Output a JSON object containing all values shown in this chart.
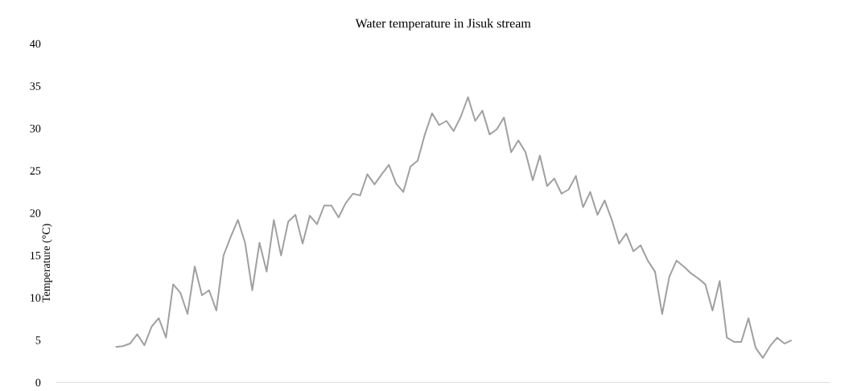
{
  "chart_data": {
    "type": "line",
    "title": "Water temperature in Jisuk stream",
    "ylabel": "Temperature (°C)",
    "categories": [
      null,
      null,
      null,
      null,
      null,
      null,
      null,
      null,
      null,
      null,
      null,
      null,
      null,
      null,
      null,
      null,
      null,
      null,
      null,
      null,
      null,
      null,
      null,
      null,
      null,
      null,
      null,
      null,
      null,
      null,
      null,
      null,
      null,
      null,
      null,
      null,
      null,
      null,
      null,
      null,
      null,
      null,
      null,
      null,
      null,
      null,
      null,
      null,
      null,
      null,
      null,
      null,
      null,
      null,
      null,
      null,
      null,
      null,
      null,
      null,
      null,
      null,
      null,
      null,
      null,
      null,
      null,
      null,
      null,
      null,
      null,
      null,
      null,
      null,
      null,
      null,
      null,
      null,
      null,
      null,
      null,
      null,
      null,
      null,
      null,
      null,
      null,
      null,
      null,
      null,
      null,
      null,
      null,
      null,
      null
    ],
    "values": [
      4.2,
      4.3,
      4.6,
      5.7,
      4.4,
      6.6,
      7.6,
      5.3,
      11.6,
      10.6,
      8.1,
      13.7,
      10.3,
      10.9,
      8.5,
      15,
      17.2,
      19.2,
      16.5,
      10.9,
      16.5,
      13.1,
      19.2,
      15,
      19,
      19.8,
      16.4,
      19.7,
      18.7,
      20.9,
      20.9,
      19.5,
      21.2,
      22.3,
      22.1,
      24.6,
      23.4,
      24.6,
      25.7,
      23.5,
      22.5,
      25.5,
      26.2,
      29.3,
      31.8,
      30.4,
      30.9,
      29.7,
      31.4,
      33.7,
      30.9,
      32.1,
      29.3,
      29.9,
      31.3,
      27.2,
      28.6,
      27.2,
      23.9,
      26.8,
      23.2,
      24.1,
      22.3,
      22.8,
      24.4,
      20.7,
      22.5,
      19.8,
      21.5,
      19.2,
      16.4,
      17.6,
      15.5,
      16.2,
      14.4,
      13.1,
      8.1,
      12.5,
      14.4,
      13.7,
      12.9,
      12.3,
      11.6,
      8.5,
      12,
      5.3,
      4.8,
      4.8,
      7.6,
      4.1,
      2.9,
      4.3,
      5.3,
      4.6,
      5.0
    ],
    "color": "#a0a0a0",
    "ylim": [
      0,
      40
    ],
    "yticks": [
      0,
      5,
      10,
      15,
      20,
      25,
      30,
      35,
      40
    ],
    "tick_labels": "y"
  }
}
